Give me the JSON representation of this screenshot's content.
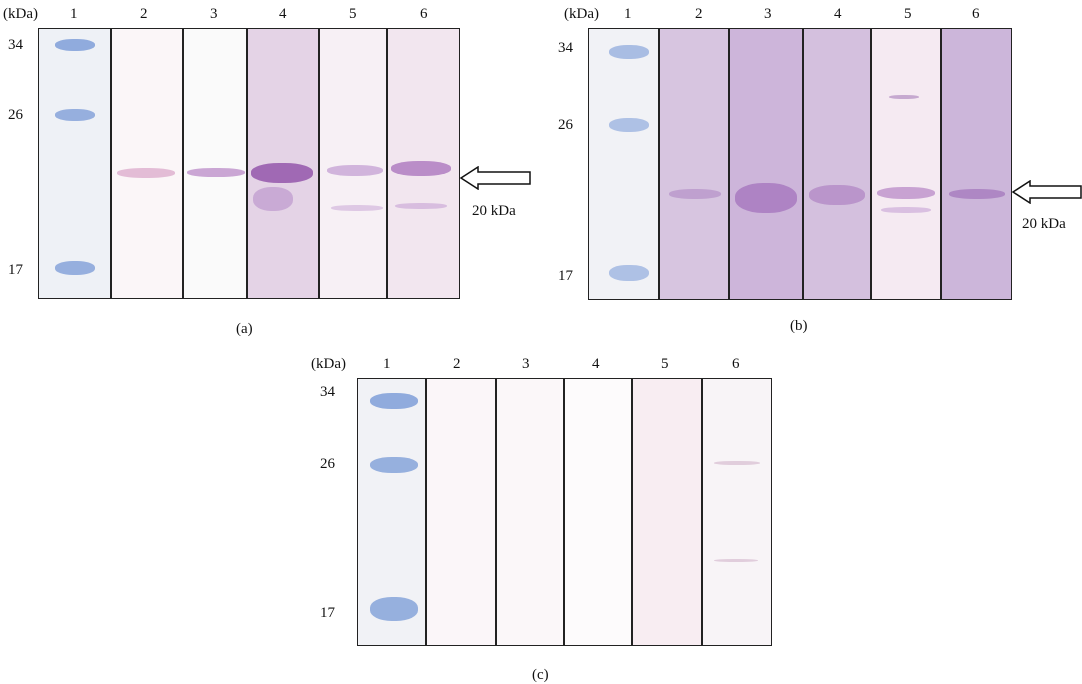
{
  "figure": {
    "panels": [
      {
        "id": "a",
        "caption": "(a)",
        "unit_label": "(kDa)",
        "lane_labels": [
          "1",
          "2",
          "3",
          "4",
          "5",
          "6"
        ],
        "markers": [
          "34",
          "26",
          "17"
        ],
        "arrow_label": "20 kDa"
      },
      {
        "id": "b",
        "caption": "(b)",
        "unit_label": "(kDa)",
        "lane_labels": [
          "1",
          "2",
          "3",
          "4",
          "5",
          "6"
        ],
        "markers": [
          "34",
          "26",
          "17"
        ],
        "arrow_label": "20 kDa"
      },
      {
        "id": "c",
        "caption": "(c)",
        "unit_label": "(kDa)",
        "lane_labels": [
          "1",
          "2",
          "3",
          "4",
          "5",
          "6"
        ],
        "markers": [
          "34",
          "26",
          "17"
        ],
        "arrow_label": ""
      }
    ]
  },
  "colors": {
    "ladder_band": "#7f9fd8",
    "purple_band": "#a266b8",
    "purple_bg": "#d6c3df",
    "light_bg": "#fbf8fa",
    "pink_bg": "#f8eef2"
  }
}
